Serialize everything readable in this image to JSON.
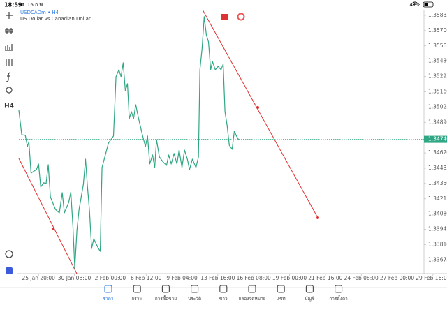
{
  "status_bar": {
    "time": "18:59",
    "date": "ศ. 16 ก.พ.",
    "battery": "41%"
  },
  "toolbar": {
    "timeframe": "H4"
  },
  "chart_data": {
    "type": "line",
    "title": "USDCADm • H4",
    "subtitle": "US Dollar vs Canadian Dollar",
    "color": "#2fa784",
    "x": [
      -0.55,
      -0.47,
      -0.37,
      -0.31,
      -0.27,
      -0.21,
      -0.06,
      0,
      0.06,
      0.14,
      0.21,
      0.27,
      0.33,
      0.47,
      0.58,
      0.66,
      0.72,
      0.84,
      0.9,
      0.96,
      1.01,
      1.07,
      1.13,
      1.25,
      1.31,
      1.36,
      1.42,
      1.48,
      1.54,
      1.66,
      1.72,
      1.77,
      1.95,
      2.09,
      2.16,
      2.24,
      2.3,
      2.36,
      2.42,
      2.48,
      2.53,
      2.59,
      2.65,
      2.71,
      2.79,
      2.89,
      2.98,
      3.04,
      3.1,
      3.18,
      3.24,
      3.29,
      3.37,
      3.47,
      3.57,
      3.63,
      3.7,
      3.78,
      3.86,
      3.92,
      4.0,
      4.07,
      4.15,
      4.21,
      4.29,
      4.39,
      4.46,
      4.5,
      4.56,
      4.62,
      4.68,
      4.74,
      4.8,
      4.85,
      4.93,
      5.01,
      5.09,
      5.15,
      5.2,
      5.26,
      5.32,
      5.4,
      5.46,
      5.52,
      5.59
    ],
    "values": [
      1.34997,
      1.34781,
      1.34775,
      1.34676,
      1.34719,
      1.34442,
      1.34473,
      1.34522,
      1.34319,
      1.34356,
      1.3435,
      1.34516,
      1.34232,
      1.34121,
      1.34091,
      1.34269,
      1.34091,
      1.34183,
      1.34275,
      1.33961,
      1.33597,
      1.33936,
      1.34121,
      1.34343,
      1.34565,
      1.34337,
      1.34109,
      1.33776,
      1.33862,
      1.33782,
      1.33751,
      1.34491,
      1.34707,
      1.34769,
      1.35293,
      1.35354,
      1.35293,
      1.35416,
      1.35169,
      1.35231,
      1.34923,
      1.34984,
      1.34923,
      1.35046,
      1.34923,
      1.34787,
      1.34676,
      1.34769,
      1.34522,
      1.34602,
      1.34491,
      1.34738,
      1.34584,
      1.34541,
      1.3451,
      1.34602,
      1.34522,
      1.34615,
      1.34522,
      1.34645,
      1.34491,
      1.34645,
      1.34565,
      1.34473,
      1.34565,
      1.34491,
      1.34584,
      1.35354,
      1.35539,
      1.35823,
      1.35662,
      1.35601,
      1.35354,
      1.35428,
      1.35354,
      1.35385,
      1.35354,
      1.35404,
      1.34984,
      1.34861,
      1.34688,
      1.34652,
      1.34812,
      1.34769,
      1.34732
    ],
    "xlim": [
      -0.55,
      10.75
    ],
    "xticks": [
      {
        "value": 0,
        "label": "25 Jan 20:00"
      },
      {
        "value": 1,
        "label": "30 Jan 08:00"
      },
      {
        "value": 2,
        "label": "2 Feb 00:00"
      },
      {
        "value": 3,
        "label": "6 Feb 12:00"
      },
      {
        "value": 4,
        "label": "9 Feb 04:00"
      },
      {
        "value": 5,
        "label": "13 Feb 16:00"
      },
      {
        "value": 6,
        "label": "16 Feb 08:00"
      },
      {
        "value": 7,
        "label": "19 Feb 00:00"
      },
      {
        "value": 8,
        "label": "21 Feb 16:00"
      },
      {
        "value": 9,
        "label": "24 Feb 08:00"
      },
      {
        "value": 10,
        "label": "27 Feb 00:00"
      },
      {
        "value": 11,
        "label": "29 Feb 16:00"
      }
    ],
    "ylim": [
      1.33554,
      1.35884
    ],
    "yticks": [
      {
        "value": 1.35835,
        "label": "1.35835"
      },
      {
        "value": 1.357,
        "label": "1.35700"
      },
      {
        "value": 1.35565,
        "label": "1.35565"
      },
      {
        "value": 1.3543,
        "label": "1.35430"
      },
      {
        "value": 1.35295,
        "label": "1.35295"
      },
      {
        "value": 1.3516,
        "label": "1.35160"
      },
      {
        "value": 1.35025,
        "label": "1.35025"
      },
      {
        "value": 1.3489,
        "label": "1.34890"
      },
      {
        "value": 1.3462,
        "label": "1.34620"
      },
      {
        "value": 1.34485,
        "label": "1.34485"
      },
      {
        "value": 1.3435,
        "label": "1.34350"
      },
      {
        "value": 1.34215,
        "label": "1.34215"
      },
      {
        "value": 1.3408,
        "label": "1.34080"
      },
      {
        "value": 1.33945,
        "label": "1.33945"
      },
      {
        "value": 1.3381,
        "label": "1.33810"
      },
      {
        "value": 1.33675,
        "label": "1.33675"
      }
    ],
    "price_line": {
      "value": 1.3474,
      "label": "1.34740",
      "color": "#2fa784"
    },
    "grid": false
  },
  "tabs": [
    {
      "label": "ราคา"
    },
    {
      "label": "กราฟ"
    },
    {
      "label": "การซื้อขาย"
    },
    {
      "label": "ประวัติ"
    },
    {
      "label": "ข่าว"
    },
    {
      "label": "กล่องจดหมาย"
    },
    {
      "label": "แชท"
    },
    {
      "label": "บัญชี"
    },
    {
      "label": "การตั้งค่า"
    }
  ]
}
